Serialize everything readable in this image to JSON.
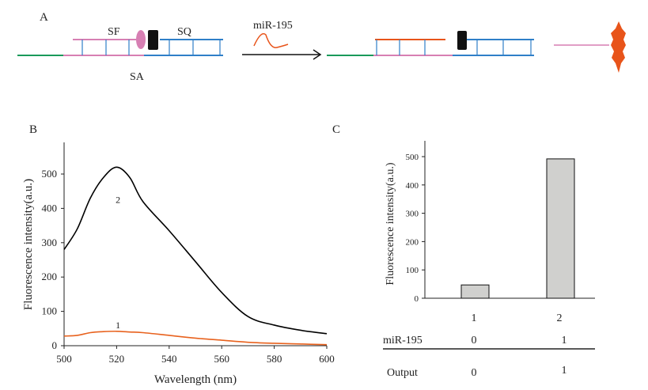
{
  "panel_labels": {
    "a": "A",
    "b": "B",
    "c": "C"
  },
  "schematic": {
    "label_sf": "SF",
    "label_sq": "SQ",
    "label_sa": "SA",
    "label_target": "miR-195",
    "colors": {
      "sa_green": "#1a9a5a",
      "pink": "#d77fb3",
      "blue": "#2f7fc8",
      "orange": "#e8541a",
      "quencher": "#111111"
    }
  },
  "chart_data": [
    {
      "type": "line",
      "title": "",
      "xlabel": "Wavelength (nm)",
      "ylabel": "Fluorescence intensity(a.u.)",
      "xlim": [
        500,
        600
      ],
      "ylim": [
        0,
        520
      ],
      "xticks": [
        500,
        520,
        540,
        560,
        580,
        600
      ],
      "yticks": [
        0,
        100,
        200,
        300,
        400,
        500
      ],
      "x": [
        500,
        505,
        510,
        515,
        520,
        525,
        530,
        540,
        550,
        560,
        570,
        580,
        590,
        600
      ],
      "series": [
        {
          "name": "1",
          "color": "#e8621e",
          "values": [
            28,
            30,
            38,
            41,
            42,
            40,
            38,
            30,
            22,
            16,
            10,
            7,
            5,
            3
          ]
        },
        {
          "name": "2",
          "color": "#000000",
          "values": [
            280,
            340,
            430,
            490,
            520,
            490,
            420,
            335,
            245,
            155,
            85,
            60,
            45,
            35
          ]
        }
      ]
    },
    {
      "type": "bar",
      "ylabel": "Fluorescence intensity(a.u.)",
      "ylim": [
        0,
        550
      ],
      "yticks": [
        0,
        100,
        200,
        300,
        400,
        500
      ],
      "categories": [
        "1",
        "2"
      ],
      "values": [
        47,
        492
      ],
      "bar_color": "#d0d0ce",
      "truth_table": {
        "rows": [
          {
            "label": "miR-195",
            "values": [
              "0",
              "1"
            ]
          },
          {
            "label": "Output",
            "values": [
              "0",
              "1"
            ]
          }
        ]
      }
    }
  ]
}
